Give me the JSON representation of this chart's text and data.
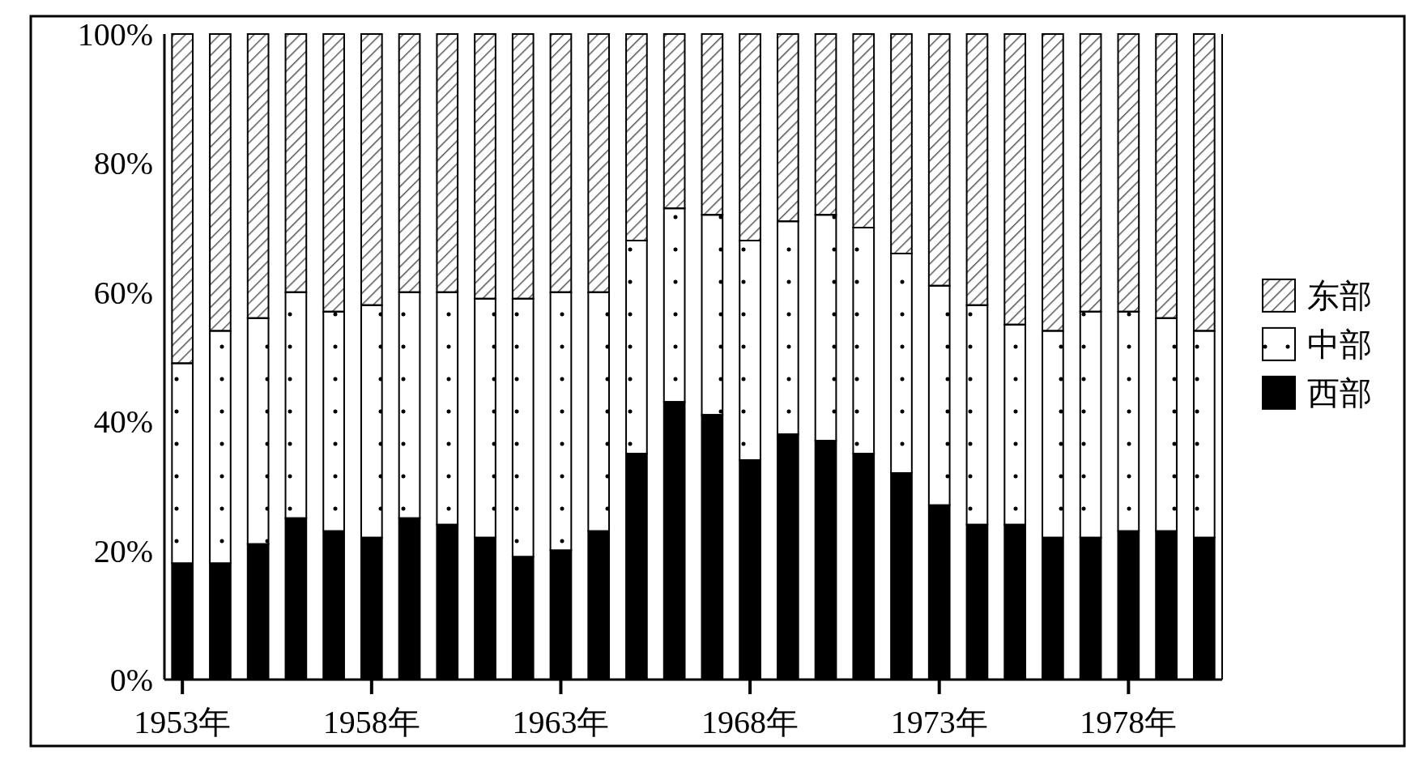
{
  "chart_data": {
    "type": "bar",
    "stacked": true,
    "categories": [
      "1953年",
      null,
      null,
      null,
      null,
      "1958年",
      null,
      null,
      null,
      null,
      "1963年",
      null,
      null,
      null,
      null,
      "1968年",
      null,
      null,
      null,
      null,
      "1973年",
      null,
      null,
      null,
      null,
      "1978年",
      null,
      null
    ],
    "series": [
      {
        "name": "西部",
        "color": "#000000",
        "values": [
          18,
          18,
          21,
          25,
          23,
          22,
          25,
          24,
          22,
          19,
          20,
          23,
          35,
          43,
          41,
          34,
          38,
          37,
          35,
          32,
          27,
          24,
          24,
          22,
          22,
          23,
          23,
          22
        ]
      },
      {
        "name": "中部",
        "color": "#ffffff",
        "values": [
          31,
          36,
          35,
          35,
          34,
          36,
          35,
          36,
          37,
          40,
          40,
          37,
          33,
          30,
          31,
          34,
          33,
          35,
          35,
          34,
          34,
          34,
          31,
          32,
          35,
          34,
          33,
          32
        ]
      },
      {
        "name": "东部",
        "color": "#555555",
        "values": [
          51,
          46,
          44,
          40,
          43,
          42,
          40,
          40,
          41,
          41,
          40,
          40,
          32,
          27,
          28,
          32,
          29,
          28,
          30,
          34,
          39,
          42,
          45,
          46,
          43,
          43,
          44,
          46
        ]
      }
    ],
    "ylim": [
      0,
      100
    ],
    "yticks": [
      {
        "value": 0,
        "label": "0%"
      },
      {
        "value": 20,
        "label": "20%"
      },
      {
        "value": 40,
        "label": "40%"
      },
      {
        "value": 60,
        "label": "60%"
      },
      {
        "value": 80,
        "label": "80%"
      },
      {
        "value": 100,
        "label": "100%"
      }
    ],
    "legend": "right"
  }
}
